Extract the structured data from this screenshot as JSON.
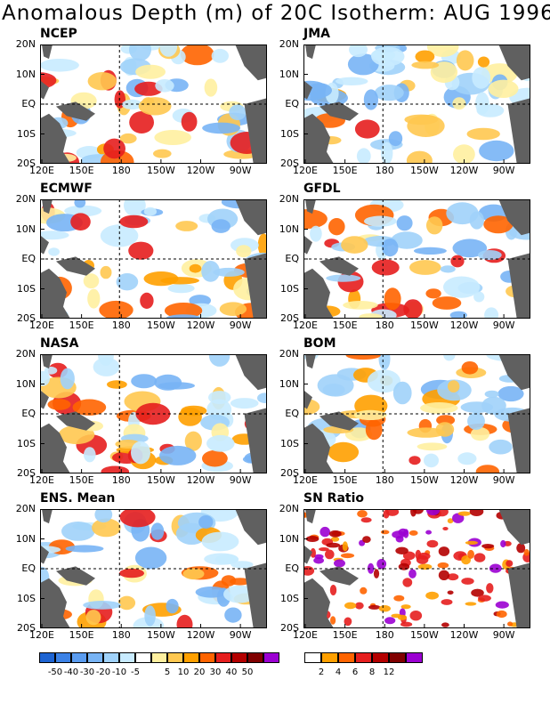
{
  "title": "Anomalous Depth (m) of 20C Isotherm: AUG 1996",
  "lat_labels": [
    "20N",
    "10N",
    "EQ",
    "10S",
    "20S"
  ],
  "lon_labels": [
    "120E",
    "150E",
    "180",
    "150W",
    "120W",
    "90W"
  ],
  "panels": [
    {
      "name": "NCEP"
    },
    {
      "name": "JMA"
    },
    {
      "name": "ECMWF"
    },
    {
      "name": "GFDL"
    },
    {
      "name": "NASA"
    },
    {
      "name": "BOM"
    },
    {
      "name": "ENS. Mean"
    },
    {
      "name": "SN Ratio"
    }
  ],
  "colorbar_anomaly": {
    "colors": [
      "#1e64d2",
      "#3c82e6",
      "#5a9cf0",
      "#78b4f5",
      "#a0d2fa",
      "#c8ebff",
      "#ffffff",
      "#fff0a0",
      "#ffc850",
      "#ffa000",
      "#ff6400",
      "#e61e1e",
      "#b40000",
      "#800000",
      "#9b00d2"
    ],
    "labels": [
      "-50",
      "-40",
      "-30",
      "-20",
      "-10",
      "-5",
      "5",
      "10",
      "20",
      "30",
      "40",
      "50"
    ]
  },
  "colorbar_sn": {
    "colors": [
      "#ffffff",
      "#ffa000",
      "#ff6400",
      "#e61e1e",
      "#b40000",
      "#800000",
      "#9b00d2"
    ],
    "labels": [
      "2",
      "4",
      "6",
      "8",
      "12"
    ]
  }
}
